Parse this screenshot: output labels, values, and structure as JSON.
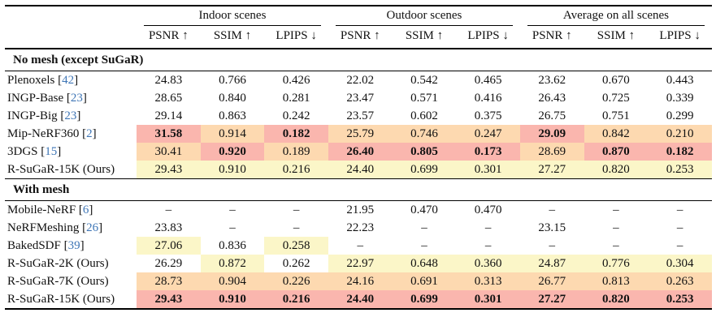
{
  "colors": {
    "best": "#fab6ae",
    "second": "#fdd9b0",
    "third": "#fbf6c8",
    "citation": "#3f76b6",
    "rule": "#000000"
  },
  "header": {
    "groups": [
      {
        "label": "Indoor scenes"
      },
      {
        "label": "Outdoor scenes"
      },
      {
        "label": "Average on all scenes"
      }
    ],
    "metrics": [
      "PSNR ↑",
      "SSIM ↑",
      "LPIPS ↓"
    ]
  },
  "sections": [
    {
      "title": "No mesh (except SuGaR)",
      "rows": [
        {
          "method": "Plenoxels",
          "citation": "42",
          "cells": [
            {
              "v": "24.83"
            },
            {
              "v": "0.766"
            },
            {
              "v": "0.426"
            },
            {
              "v": "22.02"
            },
            {
              "v": "0.542"
            },
            {
              "v": "0.465"
            },
            {
              "v": "23.62"
            },
            {
              "v": "0.670"
            },
            {
              "v": "0.443"
            }
          ]
        },
        {
          "method": "INGP-Base",
          "citation": "23",
          "cells": [
            {
              "v": "28.65"
            },
            {
              "v": "0.840"
            },
            {
              "v": "0.281"
            },
            {
              "v": "23.47"
            },
            {
              "v": "0.571"
            },
            {
              "v": "0.416"
            },
            {
              "v": "26.43"
            },
            {
              "v": "0.725"
            },
            {
              "v": "0.339"
            }
          ]
        },
        {
          "method": "INGP-Big",
          "citation": "23",
          "cells": [
            {
              "v": "29.14"
            },
            {
              "v": "0.863"
            },
            {
              "v": "0.242"
            },
            {
              "v": "23.57"
            },
            {
              "v": "0.602"
            },
            {
              "v": "0.375"
            },
            {
              "v": "26.75"
            },
            {
              "v": "0.751"
            },
            {
              "v": "0.299"
            }
          ]
        },
        {
          "method": "Mip-NeRF360",
          "citation": "2",
          "cells": [
            {
              "v": "31.58",
              "hl": "best",
              "b": true
            },
            {
              "v": "0.914",
              "hl": "second"
            },
            {
              "v": "0.182",
              "hl": "best",
              "b": true
            },
            {
              "v": "25.79",
              "hl": "second"
            },
            {
              "v": "0.746",
              "hl": "second"
            },
            {
              "v": "0.247",
              "hl": "second"
            },
            {
              "v": "29.09",
              "hl": "best",
              "b": true
            },
            {
              "v": "0.842",
              "hl": "second"
            },
            {
              "v": "0.210",
              "hl": "second"
            }
          ]
        },
        {
          "method": "3DGS",
          "citation": "15",
          "cells": [
            {
              "v": "30.41",
              "hl": "second"
            },
            {
              "v": "0.920",
              "hl": "best",
              "b": true
            },
            {
              "v": "0.189",
              "hl": "second"
            },
            {
              "v": "26.40",
              "hl": "best",
              "b": true
            },
            {
              "v": "0.805",
              "hl": "best",
              "b": true
            },
            {
              "v": "0.173",
              "hl": "best",
              "b": true
            },
            {
              "v": "28.69",
              "hl": "second"
            },
            {
              "v": "0.870",
              "hl": "best",
              "b": true
            },
            {
              "v": "0.182",
              "hl": "best",
              "b": true
            }
          ]
        },
        {
          "method": "R-SuGaR-15K (Ours)",
          "citation": "",
          "cells": [
            {
              "v": "29.43",
              "hl": "third"
            },
            {
              "v": "0.910",
              "hl": "third"
            },
            {
              "v": "0.216",
              "hl": "third"
            },
            {
              "v": "24.40",
              "hl": "third"
            },
            {
              "v": "0.699",
              "hl": "third"
            },
            {
              "v": "0.301",
              "hl": "third"
            },
            {
              "v": "27.27",
              "hl": "third"
            },
            {
              "v": "0.820",
              "hl": "third"
            },
            {
              "v": "0.253",
              "hl": "third"
            }
          ]
        }
      ]
    },
    {
      "title": "With mesh",
      "rows": [
        {
          "method": "Mobile-NeRF",
          "citation": "6",
          "cells": [
            {
              "v": "–"
            },
            {
              "v": "–"
            },
            {
              "v": "–"
            },
            {
              "v": "21.95"
            },
            {
              "v": "0.470"
            },
            {
              "v": "0.470"
            },
            {
              "v": "–"
            },
            {
              "v": "–"
            },
            {
              "v": "–"
            }
          ]
        },
        {
          "method": "NeRFMeshing",
          "citation": "26",
          "cells": [
            {
              "v": "23.83"
            },
            {
              "v": "–"
            },
            {
              "v": "–"
            },
            {
              "v": "22.23"
            },
            {
              "v": "–"
            },
            {
              "v": "–"
            },
            {
              "v": "23.15"
            },
            {
              "v": "–"
            },
            {
              "v": "–"
            }
          ]
        },
        {
          "method": "BakedSDF",
          "citation": "39",
          "cells": [
            {
              "v": "27.06",
              "hl": "third"
            },
            {
              "v": "0.836"
            },
            {
              "v": "0.258",
              "hl": "third"
            },
            {
              "v": "–"
            },
            {
              "v": "–"
            },
            {
              "v": "–"
            },
            {
              "v": "–"
            },
            {
              "v": "–"
            },
            {
              "v": "–"
            }
          ]
        },
        {
          "method": "R-SuGaR-2K (Ours)",
          "citation": "",
          "cells": [
            {
              "v": "26.29"
            },
            {
              "v": "0.872",
              "hl": "third"
            },
            {
              "v": "0.262"
            },
            {
              "v": "22.97",
              "hl": "third"
            },
            {
              "v": "0.648",
              "hl": "third"
            },
            {
              "v": "0.360",
              "hl": "third"
            },
            {
              "v": "24.87",
              "hl": "third"
            },
            {
              "v": "0.776",
              "hl": "third"
            },
            {
              "v": "0.304",
              "hl": "third"
            }
          ]
        },
        {
          "method": "R-SuGaR-7K (Ours)",
          "citation": "",
          "cells": [
            {
              "v": "28.73",
              "hl": "second"
            },
            {
              "v": "0.904",
              "hl": "second"
            },
            {
              "v": "0.226",
              "hl": "second"
            },
            {
              "v": "24.16",
              "hl": "second"
            },
            {
              "v": "0.691",
              "hl": "second"
            },
            {
              "v": "0.313",
              "hl": "second"
            },
            {
              "v": "26.77",
              "hl": "second"
            },
            {
              "v": "0.813",
              "hl": "second"
            },
            {
              "v": "0.263",
              "hl": "second"
            }
          ]
        },
        {
          "method": "R-SuGaR-15K (Ours)",
          "citation": "",
          "cells": [
            {
              "v": "29.43",
              "hl": "best",
              "b": true
            },
            {
              "v": "0.910",
              "hl": "best",
              "b": true
            },
            {
              "v": "0.216",
              "hl": "best",
              "b": true
            },
            {
              "v": "24.40",
              "hl": "best",
              "b": true
            },
            {
              "v": "0.699",
              "hl": "best",
              "b": true
            },
            {
              "v": "0.301",
              "hl": "best",
              "b": true
            },
            {
              "v": "27.27",
              "hl": "best",
              "b": true
            },
            {
              "v": "0.820",
              "hl": "best",
              "b": true
            },
            {
              "v": "0.253",
              "hl": "best",
              "b": true
            }
          ]
        }
      ]
    }
  ]
}
